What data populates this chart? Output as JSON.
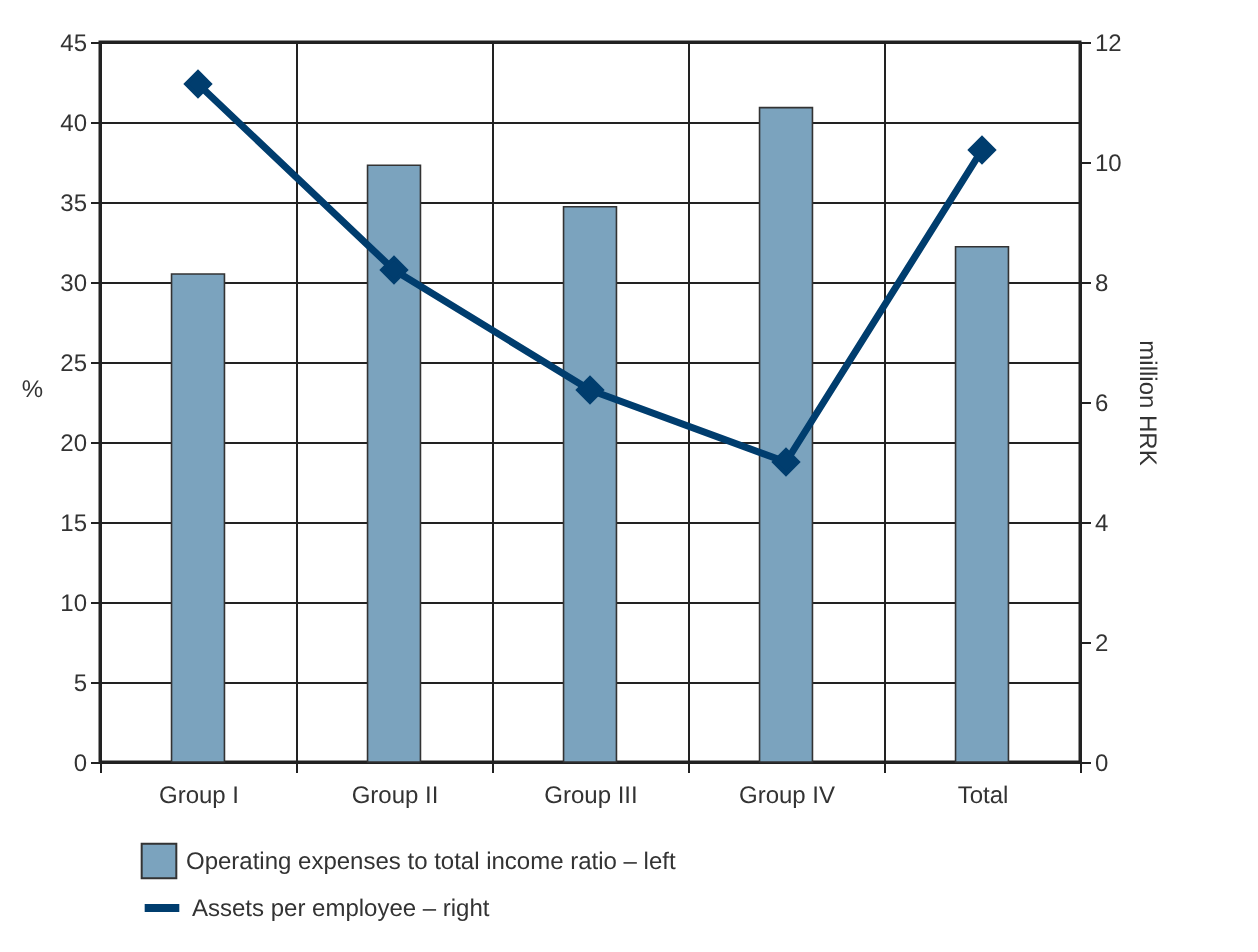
{
  "chart_data": {
    "type": "bar",
    "categories": [
      "Group I",
      "Group II",
      "Group III",
      "Group IV",
      "Total"
    ],
    "series": [
      {
        "name": "Operating expenses to total income ratio – left",
        "color": "#7ba3be",
        "values": [
          30.5,
          37.3,
          34.7,
          40.9,
          32.2
        ]
      },
      {
        "name": "Assets per employee – right",
        "type": "line",
        "axis": "y2",
        "color": "#003d6e",
        "values": [
          11.3,
          8.2,
          6.2,
          5.0,
          10.2
        ],
        "marker": "diamond"
      }
    ],
    "ylabel": "%",
    "y2label": "million HRK",
    "ylim": [
      0,
      45
    ],
    "yticks": [
      0,
      5,
      10,
      15,
      20,
      25,
      30,
      35,
      40,
      45
    ],
    "y2lim": [
      0,
      12
    ],
    "y2ticks": [
      0,
      2,
      4,
      6,
      8,
      10,
      12
    ],
    "grid": true,
    "legend": "bottom"
  }
}
